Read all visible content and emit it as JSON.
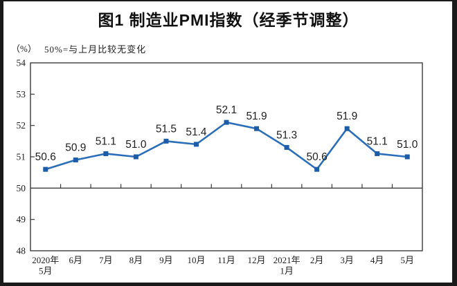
{
  "chart_data": {
    "type": "line",
    "title": "图1 制造业PMI指数（经季节调整）",
    "unit_label": "（%）",
    "note": "50%=与上月比较无变化",
    "categories": [
      "2020年\n5月",
      "6月",
      "7月",
      "8月",
      "9月",
      "10月",
      "11月",
      "12月",
      "2021年\n1月",
      "2月",
      "3月",
      "4月",
      "5月"
    ],
    "values": [
      50.6,
      50.9,
      51.1,
      51.0,
      51.5,
      51.4,
      52.1,
      51.9,
      51.3,
      50.6,
      51.9,
      51.1,
      51.0
    ],
    "ylim": [
      48,
      54
    ],
    "yticks": [
      48,
      49,
      50,
      51,
      52,
      53,
      54
    ],
    "baseline": 50,
    "grid": false,
    "data_labels": true,
    "legend": "none"
  },
  "colors": {
    "line": "#2a6db8",
    "marker": "#1d5ca8",
    "axis": "#3a3a3a",
    "label_text": "#1f1f1f",
    "axis_text": "#222222",
    "frame": "#1a1a1a",
    "background": "#ffffff"
  }
}
